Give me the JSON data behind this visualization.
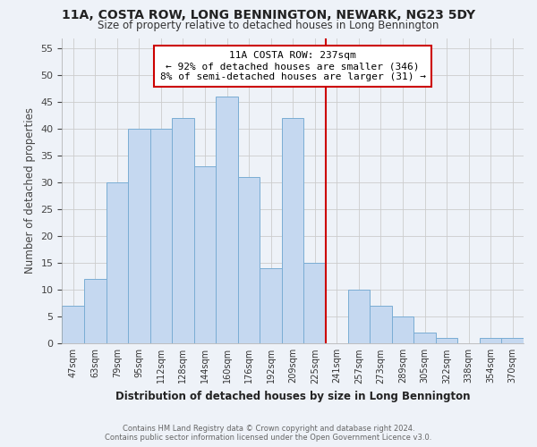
{
  "title": "11A, COSTA ROW, LONG BENNINGTON, NEWARK, NG23 5DY",
  "subtitle": "Size of property relative to detached houses in Long Bennington",
  "xlabel": "Distribution of detached houses by size in Long Bennington",
  "ylabel": "Number of detached properties",
  "footer_line1": "Contains HM Land Registry data © Crown copyright and database right 2024.",
  "footer_line2": "Contains public sector information licensed under the Open Government Licence v3.0.",
  "bin_labels": [
    "47sqm",
    "63sqm",
    "79sqm",
    "95sqm",
    "112sqm",
    "128sqm",
    "144sqm",
    "160sqm",
    "176sqm",
    "192sqm",
    "209sqm",
    "225sqm",
    "241sqm",
    "257sqm",
    "273sqm",
    "289sqm",
    "305sqm",
    "322sqm",
    "338sqm",
    "354sqm",
    "370sqm"
  ],
  "bar_heights": [
    7,
    12,
    30,
    40,
    40,
    42,
    33,
    46,
    31,
    14,
    42,
    15,
    0,
    10,
    7,
    5,
    2,
    1,
    0,
    1,
    1
  ],
  "bar_color": "#c5d8f0",
  "bar_edge_color": "#7aadd4",
  "reference_line_x": 12.0,
  "reference_line_color": "#cc0000",
  "annotation_text_line1": "11A COSTA ROW: 237sqm",
  "annotation_text_line2": "← 92% of detached houses are smaller (346)",
  "annotation_text_line3": "8% of semi-detached houses are larger (31) →",
  "ylim": [
    0,
    57
  ],
  "yticks": [
    0,
    5,
    10,
    15,
    20,
    25,
    30,
    35,
    40,
    45,
    50,
    55
  ],
  "grid_color": "#cccccc",
  "bg_color": "#eef2f8"
}
